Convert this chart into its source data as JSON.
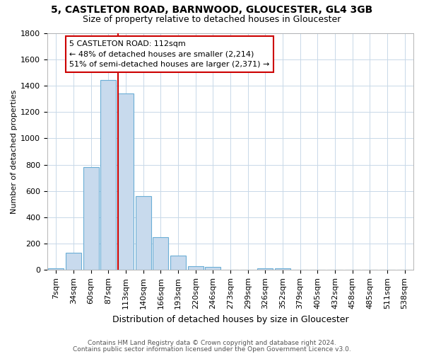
{
  "title1": "5, CASTLETON ROAD, BARNWOOD, GLOUCESTER, GL4 3GB",
  "title2": "Size of property relative to detached houses in Gloucester",
  "xlabel": "Distribution of detached houses by size in Gloucester",
  "ylabel": "Number of detached properties",
  "footer1": "Contains HM Land Registry data © Crown copyright and database right 2024.",
  "footer2": "Contains public sector information licensed under the Open Government Licence v3.0.",
  "bar_labels": [
    "7sqm",
    "34sqm",
    "60sqm",
    "87sqm",
    "113sqm",
    "140sqm",
    "166sqm",
    "193sqm",
    "220sqm",
    "246sqm",
    "273sqm",
    "299sqm",
    "326sqm",
    "352sqm",
    "379sqm",
    "405sqm",
    "432sqm",
    "458sqm",
    "485sqm",
    "511sqm",
    "538sqm"
  ],
  "bar_values": [
    10,
    130,
    780,
    1440,
    1340,
    560,
    250,
    110,
    30,
    25,
    0,
    0,
    15,
    10,
    0,
    0,
    0,
    0,
    0,
    0,
    0
  ],
  "bar_color": "#c8daed",
  "bar_edge_color": "#6baed6",
  "vline_x_idx": 4,
  "annotation_text1": "5 CASTLETON ROAD: 112sqm",
  "annotation_text2": "← 48% of detached houses are smaller (2,214)",
  "annotation_text3": "51% of semi-detached houses are larger (2,371) →",
  "annotation_box_color": "white",
  "annotation_border_color": "#cc0000",
  "vline_color": "#cc0000",
  "grid_color": "#c8d8e8",
  "bg_color": "#ffffff",
  "plot_bg_color": "#ffffff",
  "ylim": [
    0,
    1800
  ],
  "yticks": [
    0,
    200,
    400,
    600,
    800,
    1000,
    1200,
    1400,
    1600,
    1800
  ],
  "title1_fontsize": 10,
  "title2_fontsize": 9,
  "xlabel_fontsize": 9,
  "ylabel_fontsize": 8,
  "tick_fontsize": 8,
  "footer_fontsize": 6.5
}
